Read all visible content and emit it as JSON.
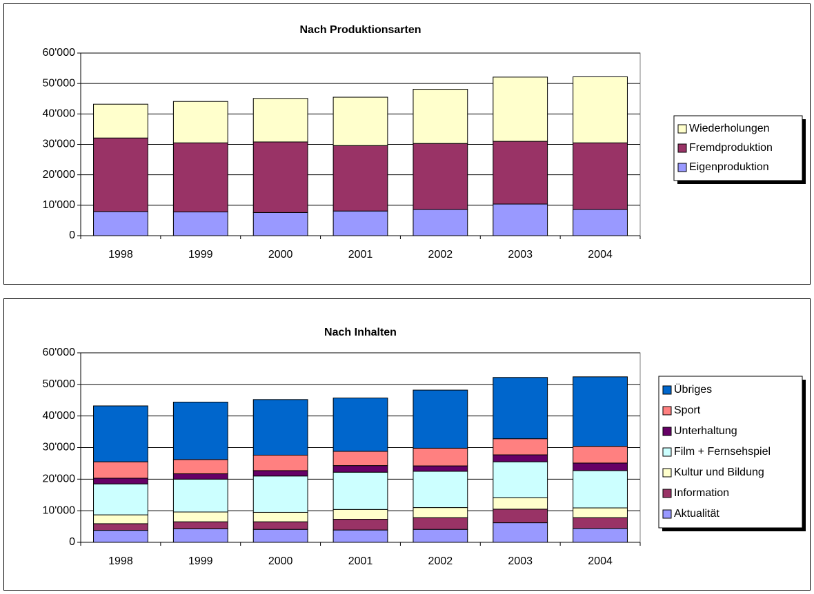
{
  "chart_data": [
    {
      "type": "bar",
      "stacked": true,
      "title": "Nach Produktionsarten",
      "categories": [
        "1998",
        "1999",
        "2000",
        "2001",
        "2002",
        "2003",
        "2004"
      ],
      "series": [
        {
          "name": "Eigenproduktion",
          "color": "#9999FF",
          "values": [
            7900,
            7800,
            7600,
            8100,
            8600,
            10400,
            8600
          ]
        },
        {
          "name": "Fremdproduktion",
          "color": "#993366",
          "values": [
            24200,
            22700,
            23200,
            21500,
            21700,
            20600,
            21900
          ]
        },
        {
          "name": "Wiederholungen",
          "color": "#FFFFCC",
          "values": [
            11100,
            13600,
            14300,
            15900,
            17800,
            21100,
            21700
          ]
        }
      ],
      "ylim": [
        0,
        60000
      ],
      "yticks": [
        0,
        {
          "value": 10000,
          "label": "10'000"
        },
        {
          "value": 20000,
          "label": "20'000"
        },
        {
          "value": 30000,
          "label": "30'000"
        },
        {
          "value": 40000,
          "label": "40'000"
        },
        {
          "value": 50000,
          "label": "50'000"
        },
        {
          "value": 60000,
          "label": "60'000"
        }
      ],
      "grid": true,
      "legend": "right"
    },
    {
      "type": "bar",
      "stacked": true,
      "title": "Nach Inhalten",
      "categories": [
        "1998",
        "1999",
        "2000",
        "2001",
        "2002",
        "2003",
        "2004"
      ],
      "series": [
        {
          "name": "Aktualität",
          "color": "#9999FF",
          "values": [
            3800,
            4300,
            4100,
            3900,
            4100,
            6200,
            4400
          ]
        },
        {
          "name": "Information",
          "color": "#993366",
          "values": [
            2100,
            2200,
            2400,
            3400,
            3700,
            4300,
            3400
          ]
        },
        {
          "name": "Kultur und Bildung",
          "color": "#FFFFCC",
          "values": [
            2800,
            3100,
            3000,
            3100,
            3200,
            3600,
            3100
          ]
        },
        {
          "name": "Film + Fernsehspiel",
          "color": "#CCFFFF",
          "values": [
            9800,
            10400,
            11500,
            11800,
            11500,
            11400,
            11800
          ]
        },
        {
          "name": "Unterhaltung",
          "color": "#660066",
          "values": [
            1800,
            1700,
            1700,
            2100,
            1700,
            2200,
            2400
          ]
        },
        {
          "name": "Sport",
          "color": "#FF8080",
          "values": [
            5200,
            4500,
            4900,
            4500,
            5600,
            5100,
            5300
          ]
        },
        {
          "name": "Übriges",
          "color": "#0066CC",
          "values": [
            17700,
            18200,
            17600,
            16900,
            18400,
            19400,
            22000
          ]
        }
      ],
      "ylim": [
        0,
        60000
      ],
      "yticks": [
        0,
        {
          "value": 10000,
          "label": "10'000"
        },
        {
          "value": 20000,
          "label": "20'000"
        },
        {
          "value": 30000,
          "label": "30'000"
        },
        {
          "value": 40000,
          "label": "40'000"
        },
        {
          "value": 50000,
          "label": "50'000"
        },
        {
          "value": 60000,
          "label": "60'000"
        }
      ],
      "grid": true,
      "legend": "right"
    }
  ]
}
